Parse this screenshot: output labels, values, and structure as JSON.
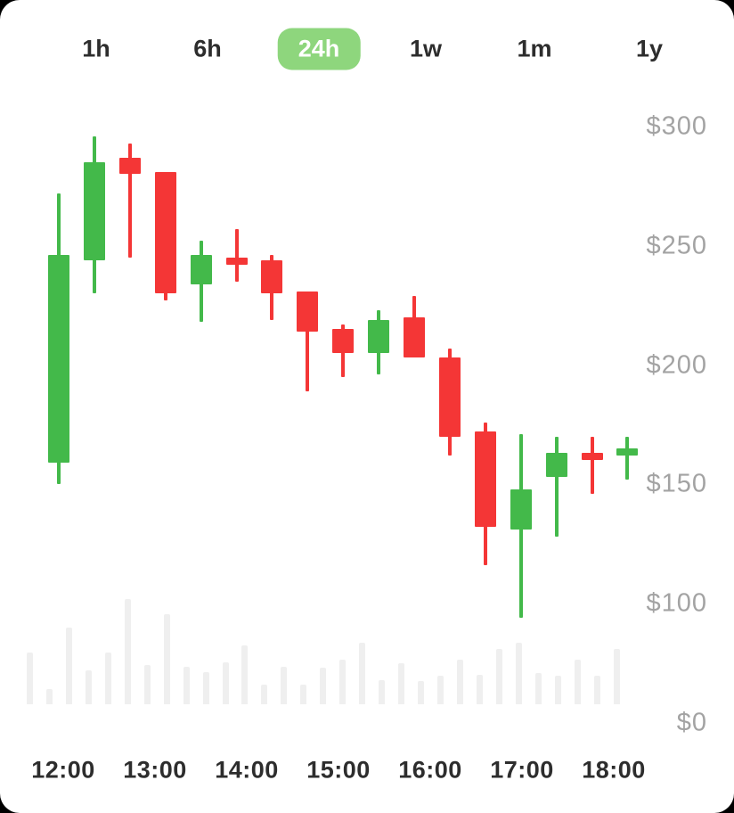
{
  "timeframe_tabs": {
    "options": [
      "1h",
      "6h",
      "24h",
      "1w",
      "1m",
      "1y"
    ],
    "selected": "24h"
  },
  "colors": {
    "page_bg": "#000000",
    "card_bg": "#ffffff",
    "bullish_green": "#43b94a",
    "bearish_red": "#f43636",
    "active_tab_bg": "#8ed67d",
    "active_tab_text": "#ffffff",
    "tab_text": "#2d2d2d",
    "y_axis_label": "#a3a3a3",
    "x_axis_label": "#2d2d2d",
    "volume_bar": "#efefef"
  },
  "chart_data": {
    "type": "candlestick",
    "title": "",
    "legend": "none",
    "grid": false,
    "price_axis": {
      "position": "right",
      "unit": "$",
      "labels": [
        "$300",
        "$250",
        "$200",
        "$150",
        "$100",
        "$0"
      ]
    },
    "time_axis": {
      "position": "bottom",
      "labels": [
        "12:00",
        "13:00",
        "14:00",
        "15:00",
        "16:00",
        "17:00",
        "18:00"
      ]
    },
    "candles": [
      {
        "open": 159,
        "high": 272,
        "low": 150,
        "close": 246
      },
      {
        "open": 244,
        "high": 296,
        "low": 230,
        "close": 285
      },
      {
        "open": 287,
        "high": 293,
        "low": 245,
        "close": 280
      },
      {
        "open": 281,
        "high": 281,
        "low": 227,
        "close": 230
      },
      {
        "open": 234,
        "high": 252,
        "low": 218,
        "close": 246
      },
      {
        "open": 245,
        "high": 257,
        "low": 235,
        "close": 242
      },
      {
        "open": 244,
        "high": 246,
        "low": 219,
        "close": 230
      },
      {
        "open": 231,
        "high": 231,
        "low": 189,
        "close": 214
      },
      {
        "open": 215,
        "high": 217,
        "low": 195,
        "close": 205
      },
      {
        "open": 205,
        "high": 223,
        "low": 196,
        "close": 219
      },
      {
        "open": 220,
        "high": 229,
        "low": 203,
        "close": 203
      },
      {
        "open": 203,
        "high": 207,
        "low": 162,
        "close": 170
      },
      {
        "open": 172,
        "high": 176,
        "low": 116,
        "close": 132
      },
      {
        "open": 131,
        "high": 171,
        "low": 94,
        "close": 148
      },
      {
        "open": 153,
        "high": 170,
        "low": 128,
        "close": 163
      },
      {
        "open": 163,
        "high": 170,
        "low": 146,
        "close": 160
      },
      {
        "open": 162,
        "high": 170,
        "low": 152,
        "close": 165
      }
    ],
    "volume_bars_relative": [
      58,
      17,
      86,
      38,
      58,
      118,
      44,
      101,
      42,
      36,
      47,
      66,
      22,
      42,
      22,
      41,
      50,
      69,
      27,
      46,
      26,
      32,
      50,
      33,
      62,
      69,
      35,
      32,
      50,
      32,
      62
    ]
  }
}
